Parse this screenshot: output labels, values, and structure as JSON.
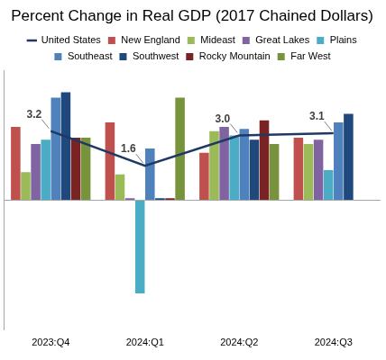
{
  "chart_data": {
    "type": "bar",
    "title": "Percent Change in Real GDP (2017 Chained Dollars)",
    "categories": [
      "2023:Q4",
      "2024:Q1",
      "2024:Q2",
      "2024:Q3"
    ],
    "ylim": [
      -6,
      6
    ],
    "yticks": [
      -6,
      -4,
      -2,
      0,
      2,
      4,
      6
    ],
    "grid": false,
    "tick_labels": "x",
    "legend": "top",
    "series": [
      {
        "name": "New England",
        "color": "#c0504d",
        "values": [
          3.4,
          3.6,
          2.2,
          2.9
        ]
      },
      {
        "name": "Mideast",
        "color": "#9bbb59",
        "values": [
          1.3,
          1.2,
          3.2,
          2.6
        ]
      },
      {
        "name": "Great Lakes",
        "color": "#8064a2",
        "values": [
          2.6,
          0.1,
          3.4,
          2.8
        ]
      },
      {
        "name": "Plains",
        "color": "#4bacc6",
        "values": [
          2.8,
          -4.3,
          3.0,
          1.4
        ]
      },
      {
        "name": "Southeast",
        "color": "#4f81bd",
        "values": [
          4.75,
          2.4,
          3.3,
          3.6
        ]
      },
      {
        "name": "Southwest",
        "color": "#1f497d",
        "values": [
          5.0,
          0.1,
          2.8,
          4.0
        ]
      },
      {
        "name": "Rocky Mountain",
        "color": "#7b2323",
        "values": [
          2.9,
          0.1,
          3.7,
          null
        ]
      },
      {
        "name": "Far West",
        "color": "#77933c",
        "values": [
          2.9,
          4.75,
          2.6,
          null
        ]
      },
      {
        "name": "United States",
        "color": "#1f3864",
        "type": "line",
        "marker": "none",
        "data_labels": true,
        "values": [
          3.2,
          1.6,
          3.0,
          3.1
        ],
        "value_labels": [
          "3.2",
          "1.6",
          "3.0",
          "3.1"
        ]
      }
    ]
  }
}
